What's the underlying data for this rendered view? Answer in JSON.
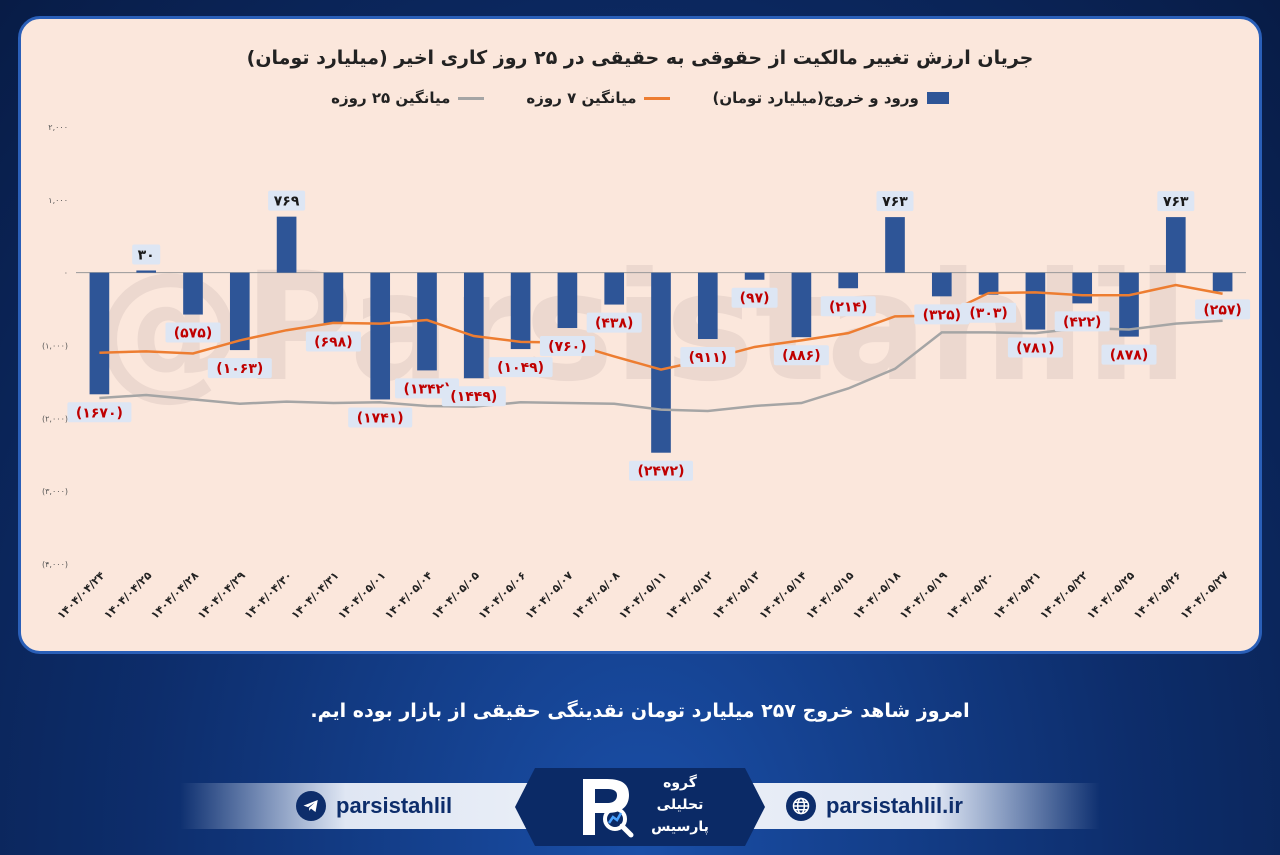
{
  "chart_data": {
    "type": "bar",
    "title": "جریان ارزش تغییر مالکیت از حقوقی به حقیقی در ۲۵ روز کاری اخیر (میلیارد تومان)",
    "legend": [
      "ورود و خروج(میلیارد تومان)",
      "میانگین ۷ روزه",
      "میانگین ۲۵ روزه"
    ],
    "categories": [
      "۱۴۰۴/۰۴/۲۴",
      "۱۴۰۴/۰۴/۲۵",
      "۱۴۰۴/۰۴/۲۸",
      "۱۴۰۴/۰۴/۲۹",
      "۱۴۰۴/۰۴/۳۰",
      "۱۴۰۴/۰۴/۳۱",
      "۱۴۰۴/۰۵/۰۱",
      "۱۴۰۴/۰۵/۰۴",
      "۱۴۰۴/۰۵/۰۵",
      "۱۴۰۴/۰۵/۰۶",
      "۱۴۰۴/۰۵/۰۷",
      "۱۴۰۴/۰۵/۰۸",
      "۱۴۰۴/۰۵/۱۱",
      "۱۴۰۴/۰۵/۱۲",
      "۱۴۰۴/۰۵/۱۳",
      "۱۴۰۴/۰۵/۱۴",
      "۱۴۰۴/۰۵/۱۵",
      "۱۴۰۴/۰۵/۱۸",
      "۱۴۰۴/۰۵/۱۹",
      "۱۴۰۴/۰۵/۲۰",
      "۱۴۰۴/۰۵/۲۱",
      "۱۴۰۴/۰۵/۲۲",
      "۱۴۰۴/۰۵/۲۵",
      "۱۴۰۴/۰۵/۲۶",
      "۱۴۰۴/۰۵/۲۷"
    ],
    "series": [
      {
        "name": "ورود و خروج(میلیارد تومان)",
        "type": "bar",
        "color": "#2e5597",
        "values": [
          -1670,
          30,
          -575,
          -1063,
          769,
          -698,
          -1741,
          -1342,
          -1449,
          -1049,
          -760,
          -438,
          -2472,
          -911,
          -97,
          -886,
          -214,
          763,
          -325,
          -303,
          -781,
          -422,
          -878,
          763,
          -257
        ],
        "labels": [
          "(۱۶۷۰)",
          "۳۰",
          "(۵۷۵)",
          "(۱۰۶۳)",
          "۷۶۹",
          "(۶۹۸)",
          "(۱۷۴۱)",
          "(۱۳۴۲)",
          "(۱۴۴۹)",
          "(۱۰۴۹)",
          "(۷۶۰)",
          "(۴۳۸)",
          "(۲۴۷۲)",
          "(۹۱۱)",
          "(۹۷)",
          "(۸۸۶)",
          "(۲۱۴)",
          "۷۶۳",
          "(۳۲۵)",
          "(۳۰۳)",
          "(۷۸۱)",
          "(۴۲۲)",
          "(۸۷۸)",
          "۷۶۳",
          "(۲۵۷)"
        ]
      },
      {
        "name": "میانگین ۷ روزه",
        "type": "line",
        "color": "#ed7d31",
        "values": [
          -1100,
          -1080,
          -1110,
          -930,
          -790,
          -690,
          -700,
          -650,
          -870,
          -950,
          -960,
          -1150,
          -1330,
          -1190,
          -1020,
          -930,
          -830,
          -600,
          -590,
          -280,
          -270,
          -310,
          -310,
          -170,
          -290
        ]
      },
      {
        "name": "میانگین ۲۵ روزه",
        "type": "line",
        "color": "#a5a5a5",
        "values": [
          -1720,
          -1680,
          -1740,
          -1800,
          -1770,
          -1790,
          -1780,
          -1830,
          -1840,
          -1780,
          -1790,
          -1800,
          -1880,
          -1900,
          -1830,
          -1790,
          -1590,
          -1320,
          -820,
          -820,
          -830,
          -760,
          -780,
          -700,
          -660
        ]
      }
    ],
    "ylim": [
      -4000,
      2000
    ],
    "yticks": [
      2000,
      1000,
      0,
      -1000,
      -2000,
      -3000,
      -4000
    ],
    "ytick_labels": [
      "۲,۰۰۰",
      "۱,۰۰۰",
      "۰",
      "(۱,۰۰۰)",
      "(۲,۰۰۰)",
      "(۳,۰۰۰)",
      "(۴,۰۰۰)"
    ],
    "grid": false,
    "legend_position": "top"
  },
  "watermark": "@Parsistahlil",
  "caption": "امروز شاهد خروج ۲۵۷ میلیارد تومان نقدینگی حقیقی از بازار بوده ایم.",
  "footer": {
    "telegram_handle": "parsistahlil",
    "website": "parsistahlil.ir",
    "logo_lines": [
      "گروه",
      "تحلیلی",
      "پارسیس"
    ]
  },
  "colors": {
    "bar": "#2e5597",
    "ma7": "#ed7d31",
    "ma25": "#a5a5a5",
    "negative_label": "#c00000",
    "card_bg": "#fbe7dc"
  }
}
